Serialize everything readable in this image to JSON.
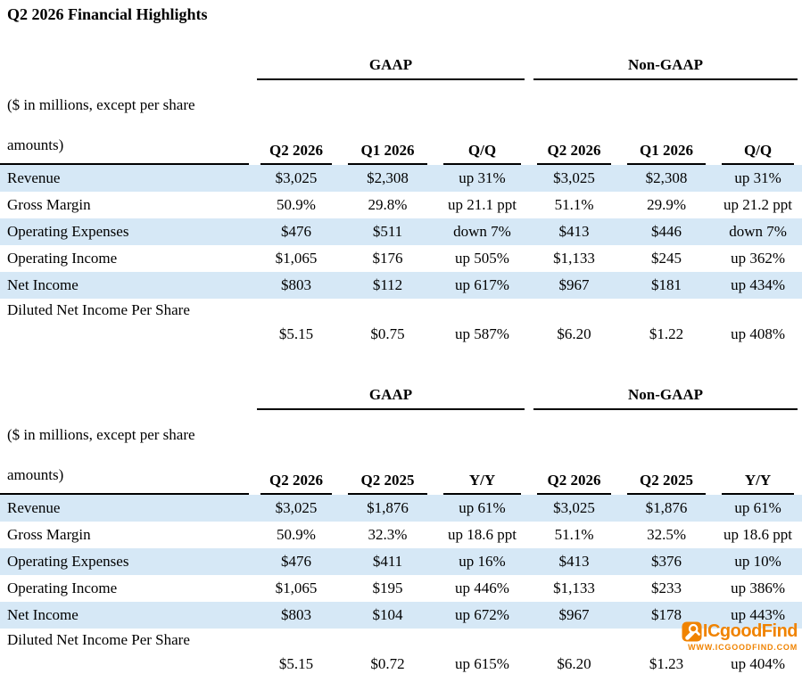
{
  "title": "Q2 2026 Financial Highlights",
  "units_note": "($ in millions, except per share amounts)",
  "colors": {
    "stripe_blue": "#d6e8f6",
    "rule_black": "#000000",
    "watermark_orange": "#f08300"
  },
  "watermark": {
    "brand": "ICgoodFind",
    "url": "WWW.ICGOODFIND.COM"
  },
  "tables": [
    {
      "id": "qq-comparison-table",
      "group_headers": [
        "GAAP",
        "Non-GAAP"
      ],
      "columns": [
        "Q2 2026",
        "Q1 2026",
        "Q/Q",
        "Q2 2026",
        "Q1 2026",
        "Q/Q"
      ],
      "rows": [
        {
          "label": "Revenue",
          "values": [
            "$3,025",
            "$2,308",
            "up 31%",
            "$3,025",
            "$2,308",
            "up 31%"
          ],
          "stripe": true,
          "tall": false
        },
        {
          "label": "Gross Margin",
          "values": [
            "50.9%",
            "29.8%",
            "up 21.1 ppt",
            "51.1%",
            "29.9%",
            "up 21.2 ppt"
          ],
          "stripe": false,
          "tall": false
        },
        {
          "label": "Operating Expenses",
          "values": [
            "$476",
            "$511",
            "down 7%",
            "$413",
            "$446",
            "down 7%"
          ],
          "stripe": true,
          "tall": false
        },
        {
          "label": "Operating Income",
          "values": [
            "$1,065",
            "$176",
            "up 505%",
            "$1,133",
            "$245",
            "up 362%"
          ],
          "stripe": false,
          "tall": false
        },
        {
          "label": "Net Income",
          "values": [
            "$803",
            "$112",
            "up 617%",
            "$967",
            "$181",
            "up 434%"
          ],
          "stripe": true,
          "tall": false
        },
        {
          "label": "Diluted Net Income Per Share",
          "values": [
            "$5.15",
            "$0.75",
            "up 587%",
            "$6.20",
            "$1.22",
            "up 408%"
          ],
          "stripe": false,
          "tall": true
        }
      ]
    },
    {
      "id": "yy-comparison-table",
      "group_headers": [
        "GAAP",
        "Non-GAAP"
      ],
      "columns": [
        "Q2 2026",
        "Q2 2025",
        "Y/Y",
        "Q2 2026",
        "Q2 2025",
        "Y/Y"
      ],
      "rows": [
        {
          "label": "Revenue",
          "values": [
            "$3,025",
            "$1,876",
            "up 61%",
            "$3,025",
            "$1,876",
            "up 61%"
          ],
          "stripe": true,
          "tall": false
        },
        {
          "label": "Gross Margin",
          "values": [
            "50.9%",
            "32.3%",
            "up 18.6 ppt",
            "51.1%",
            "32.5%",
            "up 18.6 ppt"
          ],
          "stripe": false,
          "tall": false
        },
        {
          "label": "Operating Expenses",
          "values": [
            "$476",
            "$411",
            "up 16%",
            "$413",
            "$376",
            "up 10%"
          ],
          "stripe": true,
          "tall": false
        },
        {
          "label": "Operating Income",
          "values": [
            "$1,065",
            "$195",
            "up 446%",
            "$1,133",
            "$233",
            "up 386%"
          ],
          "stripe": false,
          "tall": false
        },
        {
          "label": "Net Income",
          "values": [
            "$803",
            "$104",
            "up 672%",
            "$967",
            "$178",
            "up 443%"
          ],
          "stripe": true,
          "tall": false
        },
        {
          "label": "Diluted Net Income Per Share",
          "values": [
            "$5.15",
            "$0.72",
            "up 615%",
            "$6.20",
            "$1.23",
            "up 404%"
          ],
          "stripe": false,
          "tall": true
        }
      ]
    }
  ]
}
